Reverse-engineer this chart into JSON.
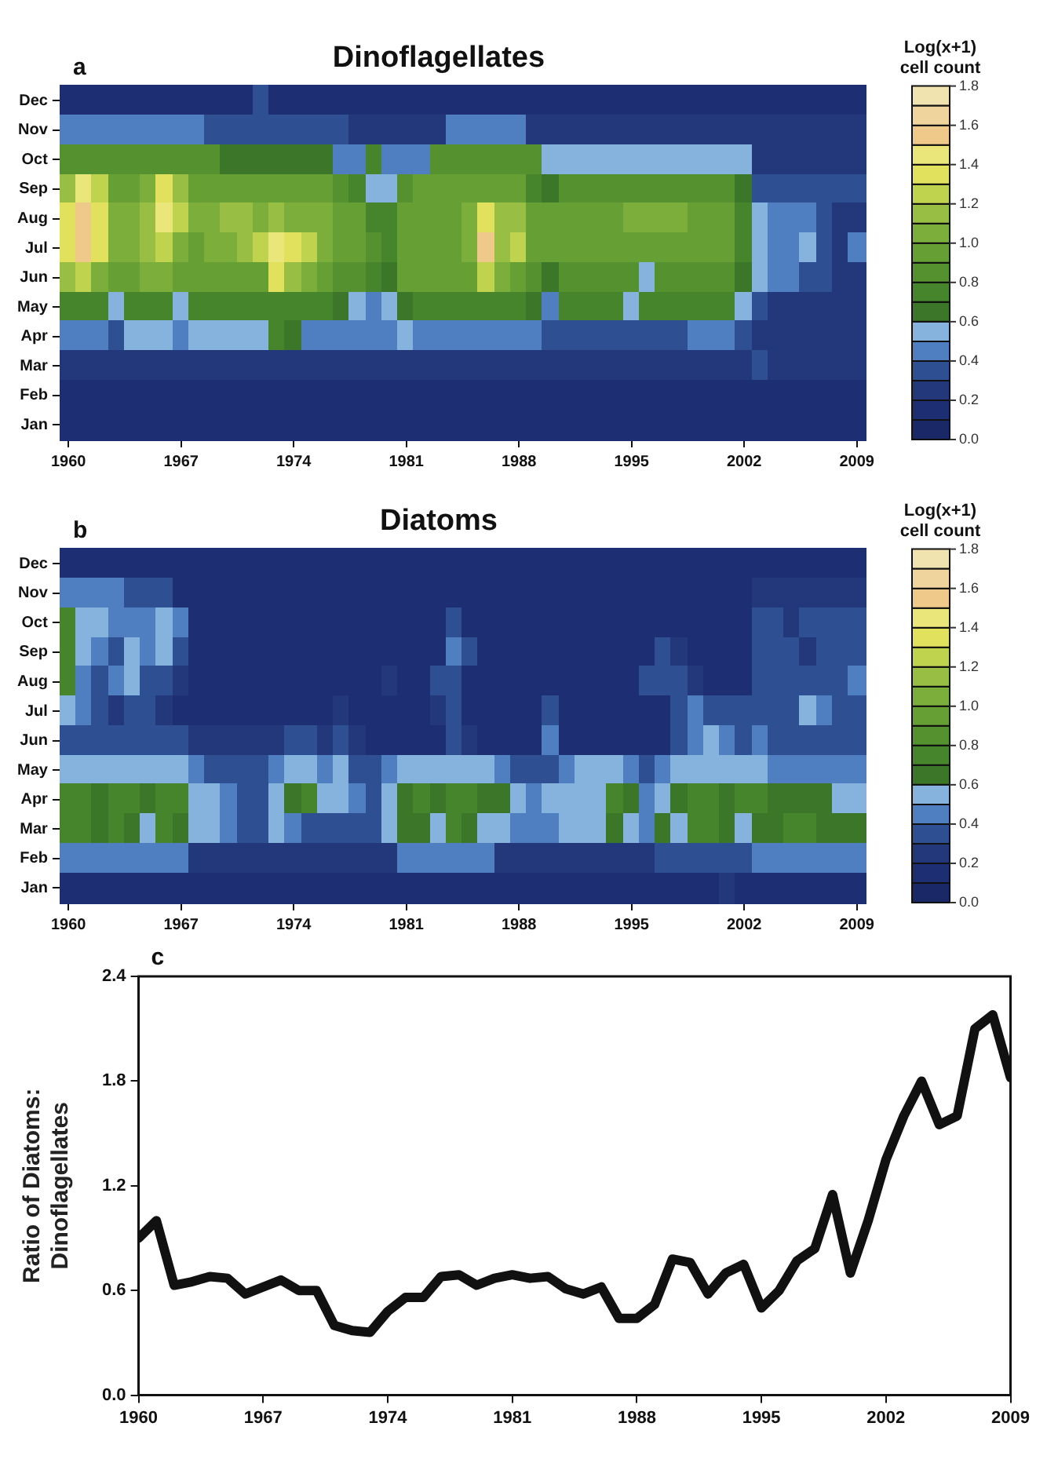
{
  "chart_data": [
    {
      "type": "heatmap",
      "title": "Dinoflagellates",
      "annotations": [
        "a"
      ],
      "clabel": "Log(x+1) cell count",
      "categories": [
        "1960",
        null,
        null,
        null,
        null,
        null,
        null,
        "1967",
        null,
        null,
        null,
        null,
        null,
        null,
        "1974",
        null,
        null,
        null,
        null,
        null,
        null,
        "1981",
        null,
        null,
        null,
        null,
        null,
        null,
        "1988",
        null,
        null,
        null,
        null,
        null,
        null,
        "1995",
        null,
        null,
        null,
        null,
        null,
        null,
        "2002",
        null,
        null,
        null,
        null,
        null,
        null,
        "2009"
      ],
      "y_categories": [
        "Dec",
        "Nov",
        "Oct",
        "Sep",
        "Aug",
        "Jul",
        "Jun",
        "May",
        "Apr",
        "Mar",
        "Feb",
        "Jan"
      ],
      "cells": [
        [
          0.1,
          0.1,
          0.1,
          0.1,
          0.1,
          0.1,
          0.1,
          0.1,
          0.1,
          0.1,
          0.1,
          0.1,
          0.3,
          0.1,
          0.1,
          0.1,
          0.1,
          0.1,
          0.1,
          0.1,
          0.1,
          0.1,
          0.1,
          0.1,
          0.1,
          0.1,
          0.1,
          0.1,
          0.1,
          0.1,
          0.1,
          0.1,
          0.1,
          0.1,
          0.1,
          0.1,
          0.1,
          0.1,
          0.1,
          0.1,
          0.1,
          0.1,
          0.1,
          0.1,
          0.1,
          0.1,
          0.1,
          0.1,
          0.1,
          0.1
        ],
        [
          0.4,
          0.4,
          0.4,
          0.4,
          0.4,
          0.4,
          0.4,
          0.4,
          0.4,
          0.3,
          0.3,
          0.3,
          0.3,
          0.3,
          0.3,
          0.3,
          0.3,
          0.3,
          0.2,
          0.2,
          0.2,
          0.2,
          0.2,
          0.2,
          0.4,
          0.4,
          0.4,
          0.4,
          0.4,
          0.2,
          0.2,
          0.2,
          0.2,
          0.2,
          0.2,
          0.2,
          0.2,
          0.2,
          0.2,
          0.2,
          0.2,
          0.2,
          0.2,
          0.2,
          0.2,
          0.2,
          0.2,
          0.2,
          0.2,
          0.2
        ],
        [
          0.8,
          0.8,
          0.8,
          0.8,
          0.8,
          0.8,
          0.8,
          0.8,
          0.8,
          0.8,
          0.6,
          0.6,
          0.6,
          0.6,
          0.6,
          0.6,
          0.6,
          0.4,
          0.4,
          0.7,
          0.4,
          0.4,
          0.4,
          0.8,
          0.8,
          0.8,
          0.8,
          0.8,
          0.8,
          0.8,
          0.5,
          0.5,
          0.5,
          0.5,
          0.5,
          0.5,
          0.5,
          0.5,
          0.5,
          0.5,
          0.5,
          0.5,
          0.5,
          0.2,
          0.2,
          0.2,
          0.2,
          0.2,
          0.2,
          0.2
        ],
        [
          1.1,
          1.4,
          1.2,
          0.9,
          0.9,
          1.0,
          1.3,
          1.1,
          0.9,
          0.9,
          0.9,
          0.9,
          0.9,
          0.9,
          0.9,
          0.9,
          0.9,
          0.8,
          0.7,
          0.5,
          0.5,
          0.8,
          0.9,
          0.9,
          0.9,
          0.9,
          0.9,
          0.9,
          0.9,
          0.7,
          0.6,
          0.8,
          0.8,
          0.8,
          0.8,
          0.8,
          0.8,
          0.8,
          0.8,
          0.8,
          0.8,
          0.8,
          0.6,
          0.3,
          0.3,
          0.3,
          0.3,
          0.3,
          0.3,
          0.3
        ],
        [
          1.3,
          1.5,
          1.3,
          1.0,
          1.0,
          1.1,
          1.4,
          1.2,
          1.0,
          1.0,
          1.1,
          1.1,
          1.0,
          1.1,
          1.0,
          1.0,
          1.0,
          0.9,
          0.9,
          0.7,
          0.7,
          0.9,
          0.9,
          0.9,
          0.9,
          1.0,
          1.3,
          1.1,
          1.1,
          0.9,
          0.9,
          0.9,
          0.9,
          0.9,
          0.9,
          1.0,
          1.0,
          1.0,
          1.0,
          0.9,
          0.9,
          0.9,
          0.7,
          0.5,
          0.4,
          0.4,
          0.4,
          0.3,
          0.2,
          0.2
        ],
        [
          1.3,
          1.5,
          1.3,
          1.0,
          1.0,
          1.1,
          1.2,
          1.0,
          0.9,
          1.0,
          1.0,
          1.1,
          1.2,
          1.4,
          1.3,
          1.2,
          1.0,
          0.9,
          0.9,
          0.8,
          0.7,
          0.9,
          0.9,
          0.9,
          0.9,
          1.0,
          1.5,
          1.1,
          1.2,
          0.9,
          0.9,
          0.9,
          0.9,
          0.9,
          0.9,
          0.9,
          0.9,
          0.9,
          0.9,
          0.9,
          0.9,
          0.9,
          0.7,
          0.5,
          0.4,
          0.4,
          0.5,
          0.3,
          0.2,
          0.4
        ],
        [
          1.1,
          1.2,
          1.0,
          0.9,
          0.9,
          1.0,
          1.0,
          0.9,
          0.9,
          0.9,
          0.9,
          0.9,
          0.9,
          1.3,
          1.1,
          1.0,
          0.9,
          0.8,
          0.8,
          0.7,
          0.6,
          0.9,
          0.9,
          0.9,
          0.9,
          0.9,
          1.2,
          1.0,
          0.9,
          0.8,
          0.6,
          0.8,
          0.8,
          0.8,
          0.8,
          0.8,
          0.5,
          0.8,
          0.8,
          0.8,
          0.8,
          0.8,
          0.6,
          0.5,
          0.4,
          0.4,
          0.3,
          0.3,
          0.2,
          0.2
        ],
        [
          0.7,
          0.7,
          0.7,
          0.5,
          0.7,
          0.7,
          0.7,
          0.5,
          0.7,
          0.7,
          0.7,
          0.7,
          0.7,
          0.7,
          0.7,
          0.7,
          0.7,
          0.6,
          0.5,
          0.4,
          0.5,
          0.6,
          0.7,
          0.7,
          0.7,
          0.7,
          0.7,
          0.7,
          0.7,
          0.6,
          0.4,
          0.7,
          0.7,
          0.7,
          0.7,
          0.5,
          0.7,
          0.7,
          0.7,
          0.7,
          0.7,
          0.7,
          0.5,
          0.3,
          0.2,
          0.2,
          0.2,
          0.2,
          0.2,
          0.2
        ],
        [
          0.4,
          0.4,
          0.4,
          0.3,
          0.5,
          0.5,
          0.5,
          0.4,
          0.5,
          0.5,
          0.5,
          0.5,
          0.5,
          0.7,
          0.6,
          0.4,
          0.4,
          0.4,
          0.4,
          0.4,
          0.4,
          0.5,
          0.4,
          0.4,
          0.4,
          0.4,
          0.4,
          0.4,
          0.4,
          0.4,
          0.3,
          0.3,
          0.3,
          0.3,
          0.3,
          0.3,
          0.3,
          0.3,
          0.3,
          0.4,
          0.4,
          0.4,
          0.3,
          0.2,
          0.2,
          0.2,
          0.2,
          0.2,
          0.2,
          0.2
        ],
        [
          0.2,
          0.2,
          0.2,
          0.2,
          0.2,
          0.2,
          0.2,
          0.2,
          0.2,
          0.2,
          0.2,
          0.2,
          0.2,
          0.2,
          0.2,
          0.2,
          0.2,
          0.2,
          0.2,
          0.2,
          0.2,
          0.2,
          0.2,
          0.2,
          0.2,
          0.2,
          0.2,
          0.2,
          0.2,
          0.2,
          0.2,
          0.2,
          0.2,
          0.2,
          0.2,
          0.2,
          0.2,
          0.2,
          0.2,
          0.2,
          0.2,
          0.2,
          0.2,
          0.3,
          0.2,
          0.2,
          0.2,
          0.2,
          0.2,
          0.2
        ],
        [
          0.1,
          0.1,
          0.1,
          0.1,
          0.1,
          0.1,
          0.1,
          0.1,
          0.1,
          0.1,
          0.1,
          0.1,
          0.1,
          0.1,
          0.1,
          0.1,
          0.1,
          0.1,
          0.1,
          0.1,
          0.1,
          0.1,
          0.1,
          0.1,
          0.1,
          0.1,
          0.1,
          0.1,
          0.1,
          0.1,
          0.1,
          0.1,
          0.1,
          0.1,
          0.1,
          0.1,
          0.1,
          0.1,
          0.1,
          0.1,
          0.1,
          0.1,
          0.1,
          0.1,
          0.1,
          0.1,
          0.1,
          0.1,
          0.1,
          0.1
        ],
        [
          0.1,
          0.1,
          0.1,
          0.1,
          0.1,
          0.1,
          0.1,
          0.1,
          0.1,
          0.1,
          0.1,
          0.1,
          0.1,
          0.1,
          0.1,
          0.1,
          0.1,
          0.1,
          0.1,
          0.1,
          0.1,
          0.1,
          0.1,
          0.1,
          0.1,
          0.1,
          0.1,
          0.1,
          0.1,
          0.1,
          0.1,
          0.1,
          0.1,
          0.1,
          0.1,
          0.1,
          0.1,
          0.1,
          0.1,
          0.1,
          0.1,
          0.1,
          0.1,
          0.1,
          0.1,
          0.1,
          0.1,
          0.1,
          0.1,
          0.1
        ]
      ],
      "clim": [
        0,
        1.8
      ],
      "cticks": [
        {
          "value": 0,
          "label": "0.0"
        },
        {
          "value": 0.2,
          "label": "0.2"
        },
        {
          "value": 0.4,
          "label": "0.4"
        },
        {
          "value": 0.6,
          "label": "0.6"
        },
        {
          "value": 0.8,
          "label": "0.8"
        },
        {
          "value": 1.0,
          "label": "1.0"
        },
        {
          "value": 1.2,
          "label": "1.2"
        },
        {
          "value": 1.4,
          "label": "1.4"
        },
        {
          "value": 1.6,
          "label": "1.6"
        },
        {
          "value": 1.8,
          "label": "1.8"
        }
      ]
    },
    {
      "type": "heatmap",
      "title": "Diatoms",
      "annotations": [
        "b"
      ],
      "clabel": "Log(x+1) cell count",
      "categories": [
        "1960",
        null,
        null,
        null,
        null,
        null,
        null,
        "1967",
        null,
        null,
        null,
        null,
        null,
        null,
        "1974",
        null,
        null,
        null,
        null,
        null,
        null,
        "1981",
        null,
        null,
        null,
        null,
        null,
        null,
        "1988",
        null,
        null,
        null,
        null,
        null,
        null,
        "1995",
        null,
        null,
        null,
        null,
        null,
        null,
        "2002",
        null,
        null,
        null,
        null,
        null,
        null,
        "2009"
      ],
      "y_categories": [
        "Dec",
        "Nov",
        "Oct",
        "Sep",
        "Aug",
        "Jul",
        "Jun",
        "May",
        "Apr",
        "Mar",
        "Feb",
        "Jan"
      ],
      "cells": [
        [
          0.1,
          0.1,
          0.1,
          0.1,
          0.1,
          0.1,
          0.1,
          0.1,
          0.1,
          0.1,
          0.1,
          0.1,
          0.1,
          0.1,
          0.1,
          0.1,
          0.1,
          0.1,
          0.1,
          0.1,
          0.1,
          0.1,
          0.1,
          0.1,
          0.1,
          0.1,
          0.1,
          0.1,
          0.1,
          0.1,
          0.1,
          0.1,
          0.1,
          0.1,
          0.1,
          0.1,
          0.1,
          0.1,
          0.1,
          0.1,
          0.1,
          0.1,
          0.1,
          0.1,
          0.1,
          0.1,
          0.1,
          0.1,
          0.1,
          0.1
        ],
        [
          0.4,
          0.4,
          0.4,
          0.4,
          0.3,
          0.3,
          0.3,
          0.1,
          0.1,
          0.1,
          0.1,
          0.1,
          0.1,
          0.1,
          0.1,
          0.1,
          0.1,
          0.1,
          0.1,
          0.1,
          0.1,
          0.1,
          0.1,
          0.1,
          0.1,
          0.1,
          0.1,
          0.1,
          0.1,
          0.1,
          0.1,
          0.1,
          0.1,
          0.1,
          0.1,
          0.1,
          0.1,
          0.1,
          0.1,
          0.1,
          0.1,
          0.1,
          0.1,
          0.2,
          0.2,
          0.2,
          0.2,
          0.2,
          0.2,
          0.2
        ],
        [
          0.7,
          0.5,
          0.5,
          0.4,
          0.4,
          0.4,
          0.5,
          0.4,
          0.1,
          0.1,
          0.1,
          0.1,
          0.1,
          0.1,
          0.1,
          0.1,
          0.1,
          0.1,
          0.1,
          0.1,
          0.1,
          0.1,
          0.1,
          0.1,
          0.3,
          0.1,
          0.1,
          0.1,
          0.1,
          0.1,
          0.1,
          0.1,
          0.1,
          0.1,
          0.1,
          0.1,
          0.1,
          0.1,
          0.1,
          0.1,
          0.1,
          0.1,
          0.1,
          0.3,
          0.3,
          0.2,
          0.3,
          0.3,
          0.3,
          0.3
        ],
        [
          0.7,
          0.5,
          0.4,
          0.3,
          0.5,
          0.4,
          0.5,
          0.3,
          0.1,
          0.1,
          0.1,
          0.1,
          0.1,
          0.1,
          0.1,
          0.1,
          0.1,
          0.1,
          0.1,
          0.1,
          0.1,
          0.1,
          0.1,
          0.1,
          0.4,
          0.3,
          0.1,
          0.1,
          0.1,
          0.1,
          0.1,
          0.1,
          0.1,
          0.1,
          0.1,
          0.1,
          0.1,
          0.3,
          0.2,
          0.1,
          0.1,
          0.1,
          0.1,
          0.3,
          0.3,
          0.3,
          0.2,
          0.3,
          0.3,
          0.3
        ],
        [
          0.7,
          0.4,
          0.3,
          0.4,
          0.5,
          0.3,
          0.3,
          0.2,
          0.1,
          0.1,
          0.1,
          0.1,
          0.1,
          0.1,
          0.1,
          0.1,
          0.1,
          0.1,
          0.1,
          0.1,
          0.2,
          0.1,
          0.1,
          0.3,
          0.3,
          0.1,
          0.1,
          0.1,
          0.1,
          0.1,
          0.1,
          0.1,
          0.1,
          0.1,
          0.1,
          0.1,
          0.3,
          0.3,
          0.3,
          0.2,
          0.1,
          0.1,
          0.1,
          0.3,
          0.3,
          0.3,
          0.3,
          0.3,
          0.3,
          0.4
        ],
        [
          0.5,
          0.4,
          0.3,
          0.2,
          0.3,
          0.3,
          0.2,
          0.1,
          0.1,
          0.1,
          0.1,
          0.1,
          0.1,
          0.1,
          0.1,
          0.1,
          0.1,
          0.2,
          0.1,
          0.1,
          0.1,
          0.1,
          0.1,
          0.2,
          0.3,
          0.1,
          0.1,
          0.1,
          0.1,
          0.1,
          0.3,
          0.1,
          0.1,
          0.1,
          0.1,
          0.1,
          0.1,
          0.1,
          0.3,
          0.4,
          0.3,
          0.3,
          0.3,
          0.3,
          0.3,
          0.3,
          0.5,
          0.4,
          0.3,
          0.3
        ],
        [
          0.3,
          0.3,
          0.3,
          0.3,
          0.3,
          0.3,
          0.3,
          0.3,
          0.2,
          0.2,
          0.2,
          0.2,
          0.2,
          0.2,
          0.3,
          0.3,
          0.2,
          0.3,
          0.2,
          0.1,
          0.1,
          0.1,
          0.1,
          0.1,
          0.3,
          0.2,
          0.1,
          0.1,
          0.1,
          0.1,
          0.4,
          0.1,
          0.1,
          0.1,
          0.1,
          0.1,
          0.1,
          0.1,
          0.3,
          0.4,
          0.5,
          0.4,
          0.3,
          0.4,
          0.3,
          0.3,
          0.3,
          0.3,
          0.3,
          0.3
        ],
        [
          0.5,
          0.5,
          0.5,
          0.5,
          0.5,
          0.5,
          0.5,
          0.5,
          0.4,
          0.3,
          0.3,
          0.3,
          0.3,
          0.4,
          0.5,
          0.5,
          0.4,
          0.5,
          0.3,
          0.3,
          0.4,
          0.5,
          0.5,
          0.5,
          0.5,
          0.5,
          0.5,
          0.4,
          0.3,
          0.3,
          0.3,
          0.4,
          0.5,
          0.5,
          0.5,
          0.4,
          0.3,
          0.4,
          0.5,
          0.5,
          0.5,
          0.5,
          0.5,
          0.5,
          0.4,
          0.4,
          0.4,
          0.4,
          0.4,
          0.4
        ],
        [
          0.7,
          0.7,
          0.6,
          0.7,
          0.7,
          0.6,
          0.7,
          0.7,
          0.5,
          0.5,
          0.4,
          0.3,
          0.3,
          0.5,
          0.6,
          0.7,
          0.5,
          0.5,
          0.4,
          0.3,
          0.5,
          0.6,
          0.7,
          0.6,
          0.7,
          0.7,
          0.6,
          0.6,
          0.5,
          0.4,
          0.5,
          0.5,
          0.5,
          0.5,
          0.7,
          0.6,
          0.4,
          0.5,
          0.6,
          0.7,
          0.7,
          0.6,
          0.7,
          0.7,
          0.6,
          0.6,
          0.6,
          0.6,
          0.5,
          0.5
        ],
        [
          0.7,
          0.7,
          0.6,
          0.7,
          0.6,
          0.5,
          0.7,
          0.6,
          0.5,
          0.5,
          0.4,
          0.3,
          0.3,
          0.5,
          0.4,
          0.3,
          0.3,
          0.3,
          0.3,
          0.3,
          0.5,
          0.6,
          0.6,
          0.5,
          0.7,
          0.6,
          0.5,
          0.5,
          0.4,
          0.4,
          0.4,
          0.5,
          0.5,
          0.5,
          0.6,
          0.5,
          0.4,
          0.6,
          0.5,
          0.7,
          0.7,
          0.6,
          0.5,
          0.6,
          0.6,
          0.7,
          0.7,
          0.6,
          0.6,
          0.6
        ],
        [
          0.4,
          0.4,
          0.4,
          0.4,
          0.4,
          0.4,
          0.4,
          0.4,
          0.2,
          0.2,
          0.2,
          0.2,
          0.2,
          0.2,
          0.2,
          0.2,
          0.2,
          0.2,
          0.2,
          0.2,
          0.2,
          0.4,
          0.4,
          0.4,
          0.4,
          0.4,
          0.4,
          0.2,
          0.2,
          0.2,
          0.2,
          0.2,
          0.2,
          0.2,
          0.2,
          0.2,
          0.2,
          0.3,
          0.3,
          0.3,
          0.3,
          0.3,
          0.3,
          0.4,
          0.4,
          0.4,
          0.4,
          0.4,
          0.4,
          0.4
        ],
        [
          0.1,
          0.1,
          0.1,
          0.1,
          0.1,
          0.1,
          0.1,
          0.1,
          0.1,
          0.1,
          0.1,
          0.1,
          0.1,
          0.1,
          0.1,
          0.1,
          0.1,
          0.1,
          0.1,
          0.1,
          0.1,
          0.1,
          0.1,
          0.1,
          0.1,
          0.1,
          0.1,
          0.1,
          0.1,
          0.1,
          0.1,
          0.1,
          0.1,
          0.1,
          0.1,
          0.1,
          0.1,
          0.1,
          0.1,
          0.1,
          0.1,
          0.2,
          0.1,
          0.1,
          0.1,
          0.1,
          0.1,
          0.1,
          0.1,
          0.1
        ]
      ],
      "clim": [
        0,
        1.8
      ],
      "cticks": [
        {
          "value": 0,
          "label": "0.0"
        },
        {
          "value": 0.2,
          "label": "0.2"
        },
        {
          "value": 0.4,
          "label": "0.4"
        },
        {
          "value": 0.6,
          "label": "0.6"
        },
        {
          "value": 0.8,
          "label": "0.8"
        },
        {
          "value": 1.0,
          "label": "1.0"
        },
        {
          "value": 1.2,
          "label": "1.2"
        },
        {
          "value": 1.4,
          "label": "1.4"
        },
        {
          "value": 1.6,
          "label": "1.6"
        },
        {
          "value": 1.8,
          "label": "1.8"
        }
      ]
    },
    {
      "type": "line",
      "annotations": [
        "c"
      ],
      "ylabel": "Ratio of Diatoms: Dinoflagellates",
      "color": "#111111",
      "x": [
        1960,
        1961,
        1962,
        1963,
        1964,
        1965,
        1966,
        1967,
        1968,
        1969,
        1970,
        1971,
        1972,
        1973,
        1974,
        1975,
        1976,
        1977,
        1978,
        1979,
        1980,
        1981,
        1982,
        1983,
        1984,
        1985,
        1986,
        1987,
        1988,
        1989,
        1990,
        1991,
        1992,
        1993,
        1994,
        1995,
        1996,
        1997,
        1998,
        1999,
        2000,
        2001,
        2002,
        2003,
        2004,
        2005,
        2006,
        2007,
        2008,
        2009
      ],
      "values": [
        0.9,
        1.0,
        0.63,
        0.65,
        0.68,
        0.67,
        0.58,
        0.62,
        0.66,
        0.6,
        0.6,
        0.4,
        0.37,
        0.36,
        0.48,
        0.56,
        0.56,
        0.68,
        0.69,
        0.63,
        0.67,
        0.69,
        0.67,
        0.68,
        0.61,
        0.58,
        0.62,
        0.44,
        0.44,
        0.52,
        0.78,
        0.76,
        0.58,
        0.7,
        0.75,
        0.5,
        0.6,
        0.77,
        0.84,
        1.15,
        0.7,
        1.0,
        1.35,
        1.6,
        1.8,
        1.55,
        1.6,
        2.1,
        2.18,
        1.82
      ],
      "xlim": [
        1960,
        2009
      ],
      "xticks": [
        1960,
        1967,
        1974,
        1981,
        1988,
        1995,
        2002,
        2009
      ],
      "ylim": [
        0,
        2.4
      ],
      "yticks": [
        {
          "value": 0,
          "label": "0.0"
        },
        {
          "value": 0.6,
          "label": "0.6"
        },
        {
          "value": 1.2,
          "label": "1.2"
        },
        {
          "value": 1.8,
          "label": "1.8"
        },
        {
          "value": 2.4,
          "label": "2.4"
        }
      ]
    }
  ]
}
